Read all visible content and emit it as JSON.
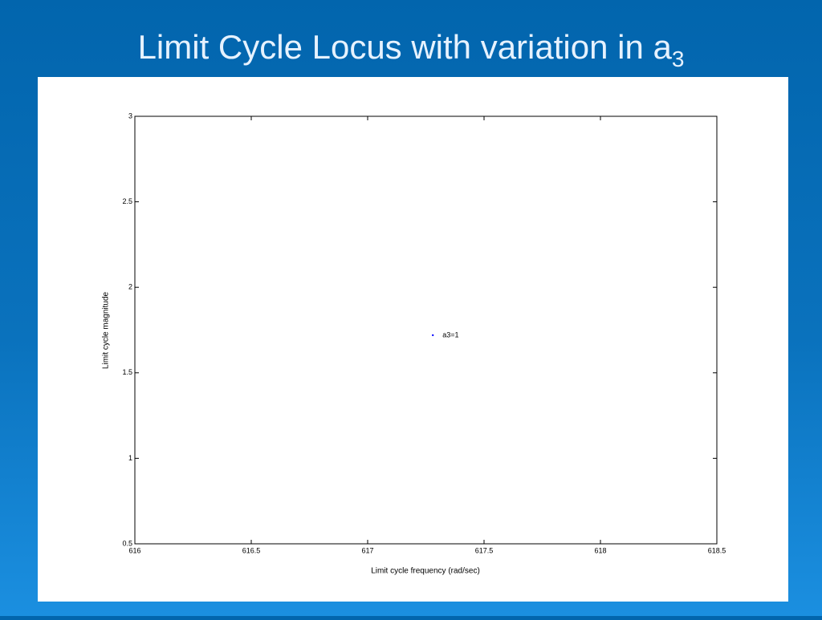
{
  "chart_data": {
    "type": "scatter",
    "title": "Limit Cycle Locus with variation in a",
    "title_subscript": "3",
    "x_label": "Limit cycle frequency (rad/sec)",
    "y_label": "Limit cycle magnitude",
    "xlim": [
      616,
      618.5
    ],
    "xticks": [
      616,
      616.5,
      617,
      617.5,
      618,
      618.5
    ],
    "ylim": [
      0.5,
      3
    ],
    "yticks": [
      0.5,
      1,
      1.5,
      2,
      2.5,
      3
    ],
    "series": [
      {
        "name": "a3=1",
        "color": "#0000ff",
        "x": [
          617.28
        ],
        "y": [
          1.72
        ]
      }
    ]
  }
}
